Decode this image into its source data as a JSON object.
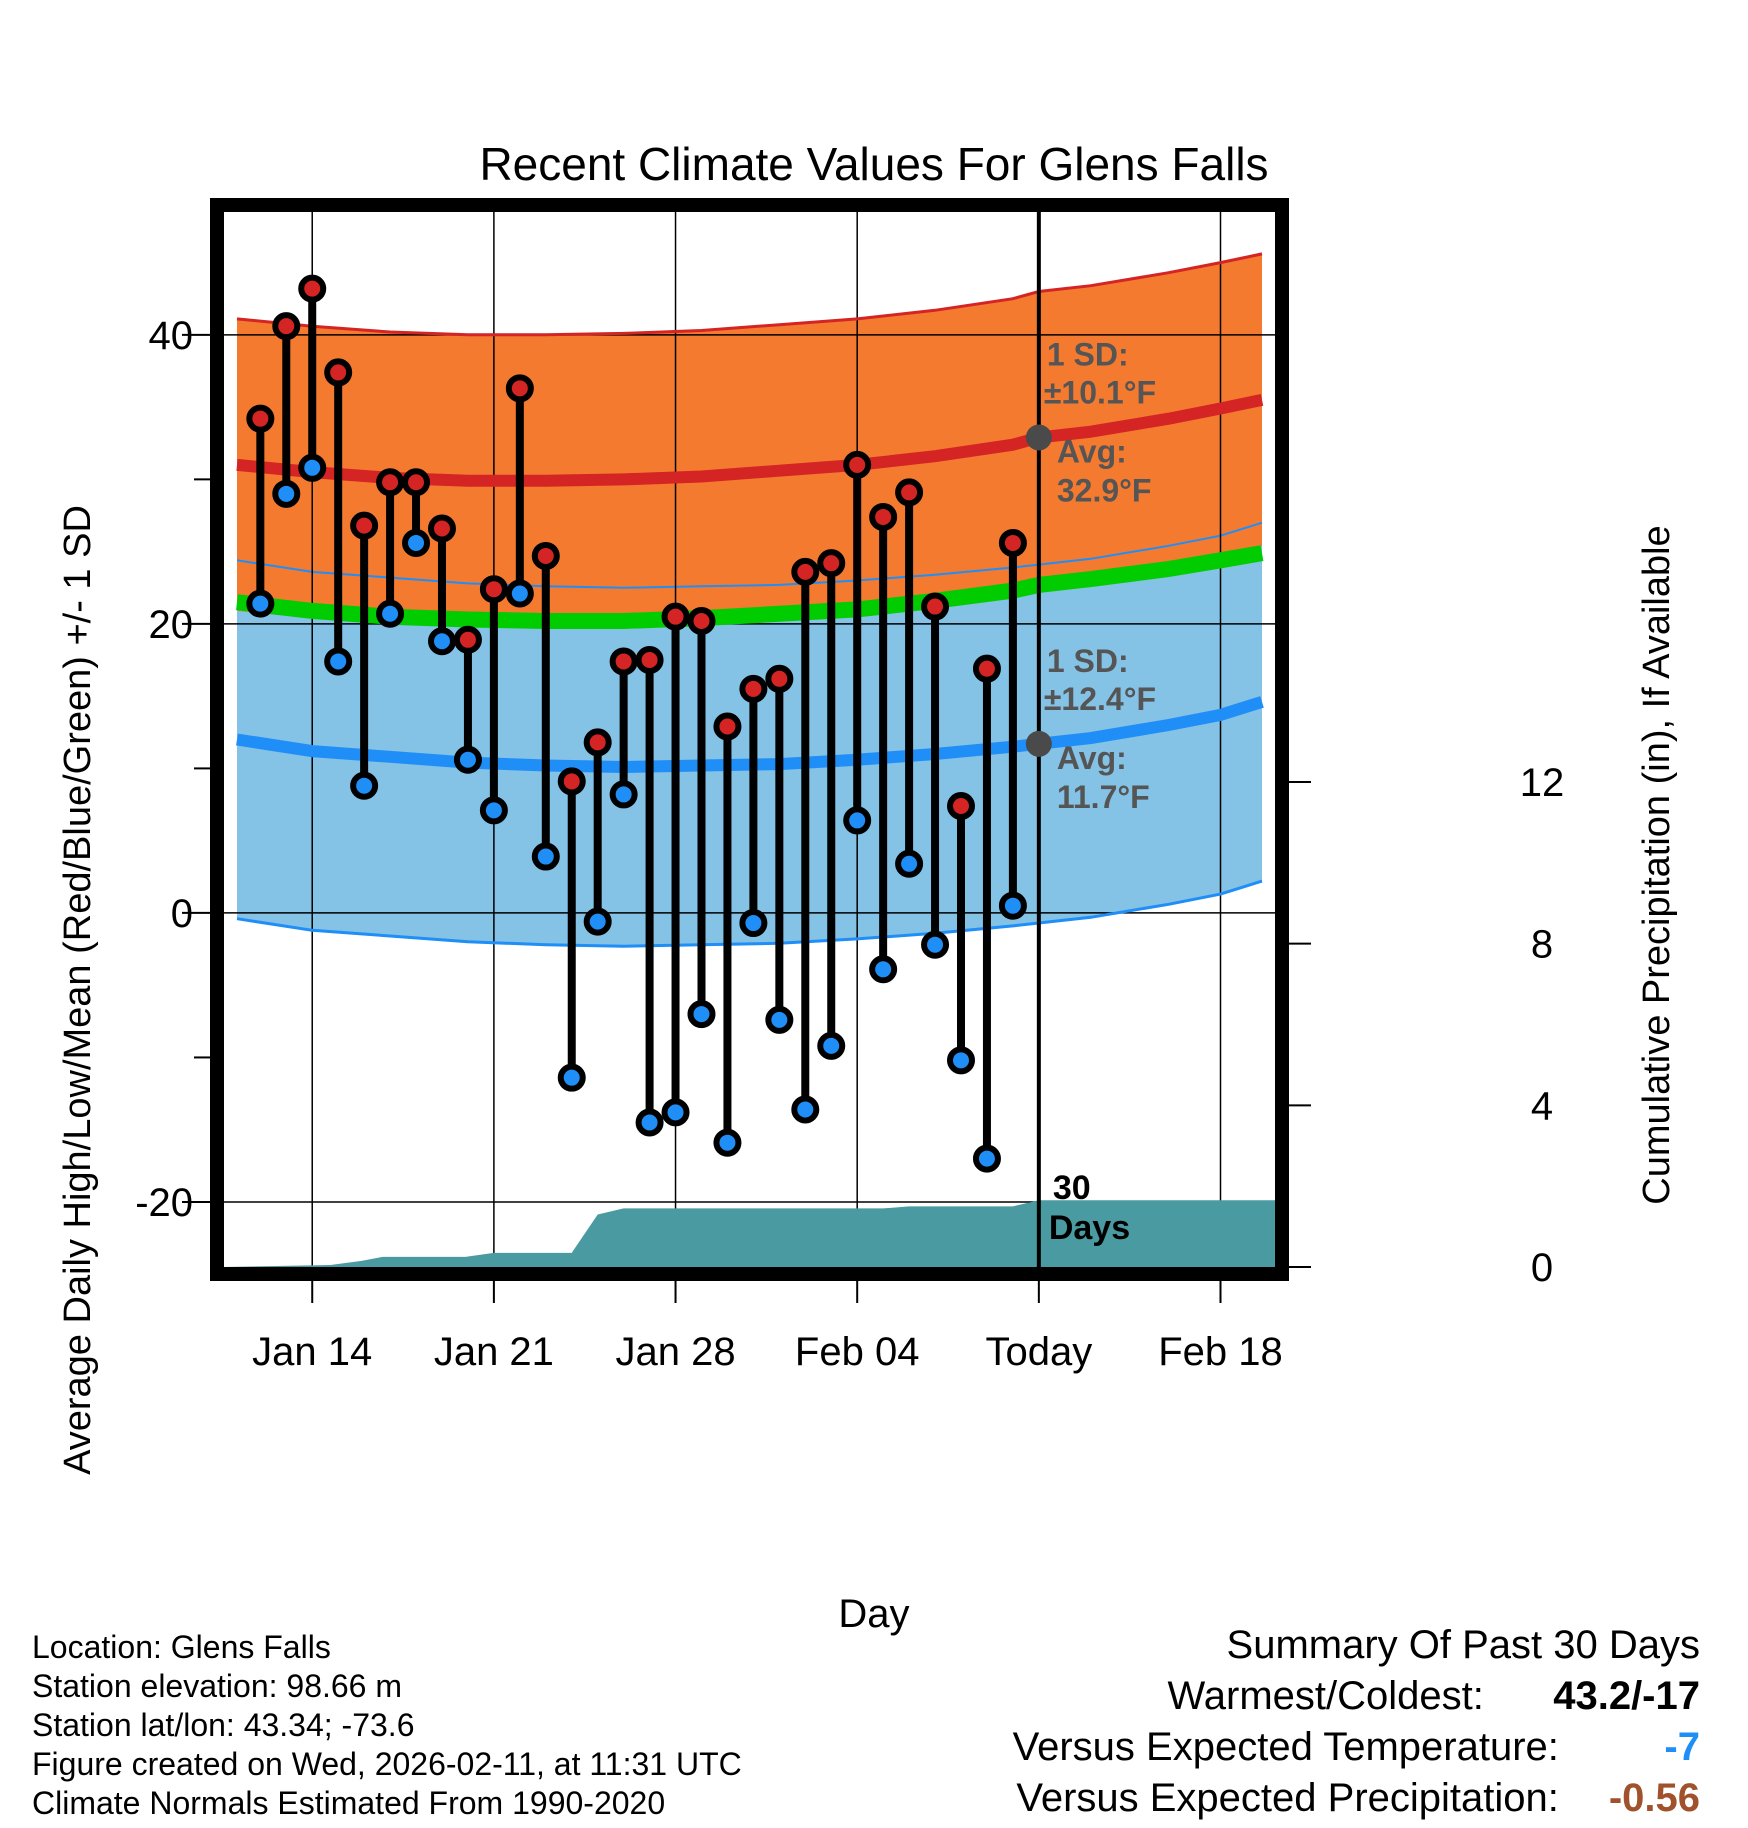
{
  "colors": {
    "high_band": "#f47a30",
    "high_line": "#d42424",
    "low_band": "#84c2e6",
    "low_line": "#1f8ef7",
    "overlap": "#8f1012",
    "mean_line": "#00cc00",
    "precip": "#4a9aa1",
    "avg_marker": "#4a4a4a",
    "annotation_text": "#555555",
    "temp_dev": "#1f8ef7",
    "precip_dev": "#a0522d"
  },
  "chart_data": {
    "type": "line",
    "title": "Recent Climate Values For Glens Falls",
    "xlabel": "Day",
    "ylabel": "Average Daily High/Low/Mean (Red/Blue/Green) +/- 1 SD",
    "y2label": "Cumulative Precipitation (in), If Available",
    "xlim": [
      -3.4,
      37.1
    ],
    "ylim": [
      -24.5,
      48.5
    ],
    "y2lim": [
      0,
      26.1
    ],
    "x_ticks": [
      {
        "x": 0,
        "label": "Jan 14"
      },
      {
        "x": 7,
        "label": "Jan 21"
      },
      {
        "x": 14,
        "label": "Jan 28"
      },
      {
        "x": 21,
        "label": "Feb 04"
      },
      {
        "x": 28,
        "label": "Today"
      },
      {
        "x": 35,
        "label": "Feb 18"
      }
    ],
    "y_ticks": [
      {
        "value": 40,
        "label": "40"
      },
      {
        "value": 20,
        "label": "20"
      },
      {
        "value": 0,
        "label": "0"
      },
      {
        "value": -20,
        "label": "-20"
      }
    ],
    "y_minor_ticks": [
      30,
      10,
      -10
    ],
    "y2_ticks": [
      {
        "value": 0,
        "label": "0"
      },
      {
        "value": 4,
        "label": "4"
      },
      {
        "value": 8,
        "label": "8"
      },
      {
        "value": 12,
        "label": "12"
      }
    ],
    "grid": true,
    "today_x": 28,
    "normals": {
      "x": [
        -2.9,
        0,
        3,
        6,
        9,
        12,
        15,
        18,
        21,
        24,
        27,
        28,
        30,
        33,
        35,
        36.6
      ],
      "high_mean": [
        31.0,
        30.5,
        30.1,
        29.9,
        29.9,
        30.0,
        30.2,
        30.6,
        31.0,
        31.6,
        32.4,
        32.9,
        33.3,
        34.2,
        34.9,
        35.5
      ],
      "high_sd": 10.1,
      "low_mean": [
        12.0,
        11.2,
        10.8,
        10.4,
        10.2,
        10.1,
        10.2,
        10.3,
        10.6,
        11.0,
        11.5,
        11.7,
        12.1,
        13.0,
        13.7,
        14.6
      ],
      "low_sd": 12.4,
      "mean_line": [
        21.5,
        20.9,
        20.5,
        20.3,
        20.2,
        20.2,
        20.4,
        20.7,
        21.0,
        21.6,
        22.3,
        22.7,
        23.1,
        23.8,
        24.4,
        24.9
      ]
    },
    "series": [
      {
        "name": "Daily High",
        "x": [
          -2,
          -1,
          0,
          1,
          2,
          3,
          4,
          5,
          6,
          7,
          8,
          9,
          10,
          11,
          12,
          13,
          14,
          15,
          16,
          17,
          18,
          19,
          20,
          21,
          22,
          23,
          24,
          25,
          26,
          27
        ],
        "values": [
          34.2,
          40.6,
          43.2,
          37.4,
          26.8,
          29.8,
          29.8,
          26.6,
          18.9,
          22.4,
          36.3,
          24.7,
          9.1,
          11.8,
          17.4,
          17.5,
          20.5,
          20.2,
          12.9,
          15.5,
          16.2,
          23.6,
          24.2,
          31.0,
          27.4,
          29.1,
          21.2,
          7.4,
          16.9,
          25.6
        ]
      },
      {
        "name": "Daily Low",
        "x": [
          -2,
          -1,
          0,
          1,
          2,
          3,
          4,
          5,
          6,
          7,
          8,
          9,
          10,
          11,
          12,
          13,
          14,
          15,
          16,
          17,
          18,
          19,
          20,
          21,
          22,
          23,
          24,
          25,
          26,
          27
        ],
        "values": [
          21.4,
          29.0,
          30.8,
          17.4,
          8.8,
          20.7,
          25.6,
          18.8,
          10.6,
          7.1,
          22.1,
          3.9,
          -11.4,
          -0.6,
          8.2,
          -14.5,
          -13.8,
          -7.0,
          -15.9,
          -0.7,
          -7.4,
          -13.6,
          -9.2,
          6.4,
          -3.9,
          3.4,
          -2.2,
          -10.2,
          -17.0,
          0.5
        ]
      },
      {
        "name": "Cumulative Precipitation",
        "x": [
          -3.4,
          0.7,
          1.9,
          2.7,
          5.9,
          7.0,
          10.0,
          11.0,
          12.0,
          20.0,
          22.0,
          23.0,
          27.0,
          28.0,
          37.1
        ],
        "values": [
          0,
          0.05,
          0.15,
          0.25,
          0.25,
          0.35,
          0.35,
          1.3,
          1.45,
          1.45,
          1.45,
          1.5,
          1.5,
          1.65,
          1.65
        ]
      }
    ],
    "annotations": {
      "high": {
        "sd_head": "1 SD:",
        "sd_value": "±10.1°F",
        "avg_head": "Avg:",
        "avg_value": "32.9°F",
        "avg": 32.9
      },
      "low": {
        "sd_head": "1 SD:",
        "sd_value": "±12.4°F",
        "avg_head": "Avg:",
        "avg_value": "11.7°F",
        "avg": 11.7
      },
      "days_number": "30",
      "days_word": "Days"
    }
  },
  "location": {
    "name_line": "Location: Glens Falls",
    "elevation_line": "Station elevation: 98.66 m",
    "latlon_line": "Station lat/lon: 43.34; -73.6",
    "created_line": "Figure created on Wed, 2026-02-11, at 11:31 UTC",
    "normals_line": "Climate Normals Estimated From 1990-2020"
  },
  "summary": {
    "title": "Summary Of Past 30 Days",
    "warmest_label": "Warmest/Coldest:",
    "warmest_value": "43.2/-17",
    "temp_label": "Versus Expected Temperature:",
    "temp_value": "-7",
    "precip_label": "Versus Expected Precipitation:",
    "precip_value": "-0.56"
  }
}
